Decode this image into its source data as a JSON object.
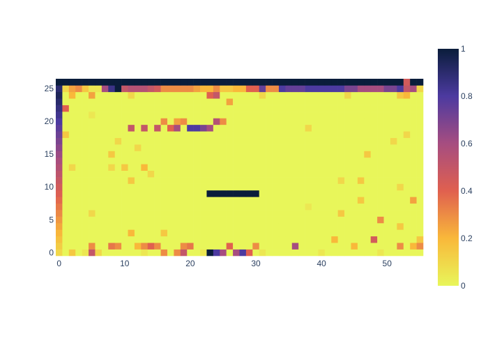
{
  "chart_data": {
    "type": "heatmap",
    "title": "",
    "xlabel": "",
    "ylabel": "",
    "x_range": [
      0,
      55
    ],
    "y_range": [
      0,
      26
    ],
    "x_ticks": [
      0,
      10,
      20,
      30,
      40,
      50
    ],
    "y_ticks": [
      0,
      5,
      10,
      15,
      20,
      25
    ],
    "x_tick_labels": [
      "0",
      "10",
      "20",
      "30",
      "40",
      "50"
    ],
    "y_tick_labels": [
      "0",
      "5",
      "10",
      "15",
      "20",
      "25"
    ],
    "colorscale": "plasma-like (dark navy at 1, purple, orange, yellow at 0)",
    "colorbar": {
      "range": [
        0,
        1
      ],
      "tick_values": [
        0,
        0.2,
        0.4,
        0.6,
        0.8,
        1
      ],
      "tick_labels": [
        "0",
        "0.2",
        "0.4",
        "0.6",
        "0.8",
        "1"
      ]
    },
    "background_value": 0,
    "grid": false,
    "approximate_nonzero_cells": [
      {
        "x": 23,
        "y": 9,
        "value": 1.0
      },
      {
        "x": 24,
        "y": 9,
        "value": 1.0
      },
      {
        "x": 25,
        "y": 9,
        "value": 1.0
      },
      {
        "x": 26,
        "y": 9,
        "value": 1.0
      },
      {
        "x": 27,
        "y": 9,
        "value": 1.0
      },
      {
        "x": 28,
        "y": 9,
        "value": 1.0
      },
      {
        "x": 29,
        "y": 9,
        "value": 1.0
      },
      {
        "x": 30,
        "y": 9,
        "value": 1.0
      },
      {
        "x": 23,
        "y": 0,
        "value": 1.0
      },
      {
        "x": 24,
        "y": 0,
        "value": 0.8
      },
      {
        "x": 25,
        "y": 0,
        "value": 0.6
      },
      {
        "x": 27,
        "y": 0,
        "value": 0.6
      },
      {
        "x": 28,
        "y": 0,
        "value": 0.8
      },
      {
        "x": 29,
        "y": 0,
        "value": 0.4
      },
      {
        "x": 5,
        "y": 0,
        "value": 0.5
      },
      {
        "x": 16,
        "y": 0,
        "value": 0.3
      },
      {
        "x": 18,
        "y": 0,
        "value": 0.3
      },
      {
        "x": 19,
        "y": 0,
        "value": 0.5
      },
      {
        "x": 2,
        "y": 0,
        "value": 0.15
      },
      {
        "x": 6,
        "y": 0,
        "value": 0.1
      },
      {
        "x": 36,
        "y": 1,
        "value": 0.6
      },
      {
        "x": 48,
        "y": 2,
        "value": 0.45
      },
      {
        "x": 5,
        "y": 1,
        "value": 0.3
      },
      {
        "x": 8,
        "y": 1,
        "value": 0.35
      },
      {
        "x": 9,
        "y": 1,
        "value": 0.3
      },
      {
        "x": 13,
        "y": 1,
        "value": 0.3
      },
      {
        "x": 14,
        "y": 1,
        "value": 0.4
      },
      {
        "x": 15,
        "y": 1,
        "value": 0.3
      },
      {
        "x": 19,
        "y": 1,
        "value": 0.3
      },
      {
        "x": 20,
        "y": 1,
        "value": 0.35
      },
      {
        "x": 26,
        "y": 1,
        "value": 0.4
      },
      {
        "x": 30,
        "y": 1,
        "value": 0.3
      },
      {
        "x": 45,
        "y": 1,
        "value": 0.2
      },
      {
        "x": 52,
        "y": 1,
        "value": 0.3
      },
      {
        "x": 54,
        "y": 1,
        "value": 0.2
      },
      {
        "x": 55,
        "y": 1,
        "value": 0.3
      },
      {
        "x": 12,
        "y": 1,
        "value": 0.2
      },
      {
        "x": 42,
        "y": 2,
        "value": 0.2
      },
      {
        "x": 55,
        "y": 2,
        "value": 0.15
      },
      {
        "x": 11,
        "y": 3,
        "value": 0.2
      },
      {
        "x": 16,
        "y": 3,
        "value": 0.15
      },
      {
        "x": 52,
        "y": 4,
        "value": 0.15
      },
      {
        "x": 49,
        "y": 5,
        "value": 0.3
      },
      {
        "x": 43,
        "y": 6,
        "value": 0.15
      },
      {
        "x": 5,
        "y": 6,
        "value": 0.1
      },
      {
        "x": 38,
        "y": 7,
        "value": 0.05
      },
      {
        "x": 46,
        "y": 8,
        "value": 0.15
      },
      {
        "x": 54,
        "y": 8,
        "value": 0.25
      },
      {
        "x": 52,
        "y": 10,
        "value": 0.1
      },
      {
        "x": 11,
        "y": 11,
        "value": 0.15
      },
      {
        "x": 43,
        "y": 11,
        "value": 0.1
      },
      {
        "x": 46,
        "y": 11,
        "value": 0.15
      },
      {
        "x": 14,
        "y": 12,
        "value": 0.1
      },
      {
        "x": 8,
        "y": 13,
        "value": 0.1
      },
      {
        "x": 10,
        "y": 13,
        "value": 0.15
      },
      {
        "x": 13,
        "y": 13,
        "value": 0.2
      },
      {
        "x": 2,
        "y": 13,
        "value": 0.1
      },
      {
        "x": 8,
        "y": 15,
        "value": 0.15
      },
      {
        "x": 47,
        "y": 15,
        "value": 0.15
      },
      {
        "x": 12,
        "y": 16,
        "value": 0.1
      },
      {
        "x": 9,
        "y": 17,
        "value": 0.1
      },
      {
        "x": 51,
        "y": 17,
        "value": 0.1
      },
      {
        "x": 1,
        "y": 18,
        "value": 0.15
      },
      {
        "x": 53,
        "y": 18,
        "value": 0.1
      },
      {
        "x": 11,
        "y": 19,
        "value": 0.5
      },
      {
        "x": 13,
        "y": 19,
        "value": 0.5
      },
      {
        "x": 15,
        "y": 19,
        "value": 0.5
      },
      {
        "x": 17,
        "y": 19,
        "value": 0.4
      },
      {
        "x": 18,
        "y": 19,
        "value": 0.6
      },
      {
        "x": 20,
        "y": 19,
        "value": 0.8
      },
      {
        "x": 21,
        "y": 19,
        "value": 0.8
      },
      {
        "x": 22,
        "y": 19,
        "value": 0.7
      },
      {
        "x": 23,
        "y": 19,
        "value": 0.6
      },
      {
        "x": 16,
        "y": 20,
        "value": 0.3
      },
      {
        "x": 18,
        "y": 20,
        "value": 0.25
      },
      {
        "x": 19,
        "y": 20,
        "value": 0.3
      },
      {
        "x": 24,
        "y": 20,
        "value": 0.55
      },
      {
        "x": 25,
        "y": 20,
        "value": 0.3
      },
      {
        "x": 38,
        "y": 19,
        "value": 0.1
      },
      {
        "x": 5,
        "y": 21,
        "value": 0.05
      },
      {
        "x": 1,
        "y": 22,
        "value": 0.4
      },
      {
        "x": 26,
        "y": 23,
        "value": 0.25
      },
      {
        "x": 5,
        "y": 24,
        "value": 0.25
      },
      {
        "x": 11,
        "y": 24,
        "value": 0.1
      },
      {
        "x": 24,
        "y": 24,
        "value": 0.5
      },
      {
        "x": 23,
        "y": 24,
        "value": 0.4
      },
      {
        "x": 31,
        "y": 24,
        "value": 0.1
      },
      {
        "x": 44,
        "y": 24,
        "value": 0.1
      },
      {
        "x": 52,
        "y": 24,
        "value": 0.15
      },
      {
        "x": 53,
        "y": 24,
        "value": 0.2
      },
      {
        "x": 2,
        "y": 24,
        "value": 0.2
      },
      {
        "x": 53,
        "y": 26,
        "value": 0.45
      }
    ]
  }
}
